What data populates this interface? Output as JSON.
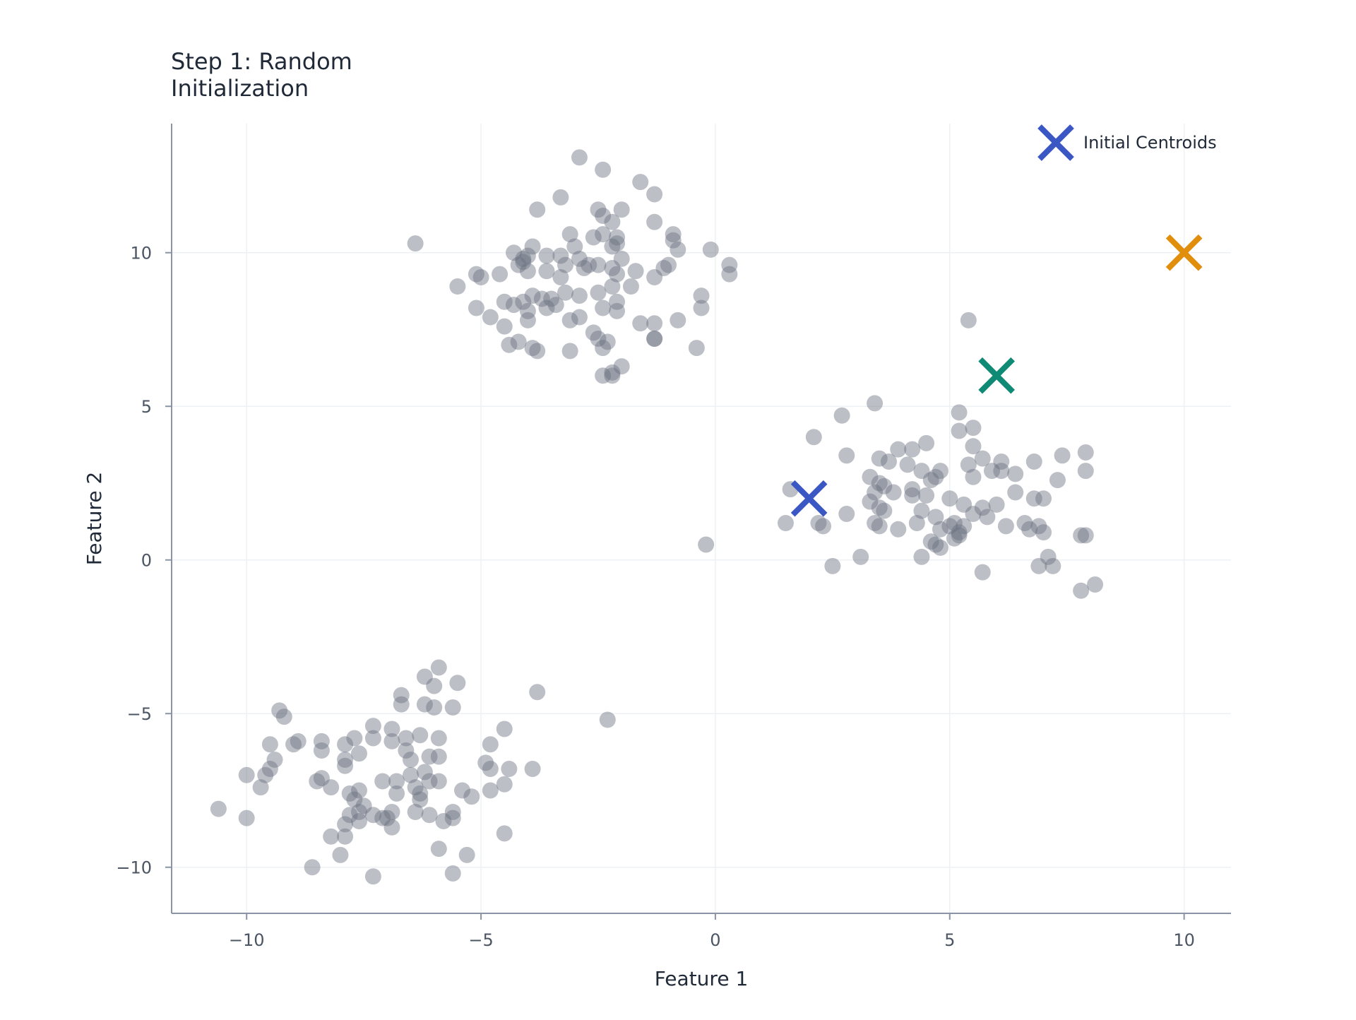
{
  "chart_data": {
    "type": "scatter",
    "title": "Step 1: Random\nInitialization",
    "xlabel": "Feature 1",
    "ylabel": "Feature 2",
    "xlim": [
      -11.6,
      11.0
    ],
    "ylim": [
      -11.5,
      14.2
    ],
    "xticks": [
      -10,
      -5,
      0,
      5,
      10
    ],
    "yticks": [
      -10,
      -5,
      0,
      5,
      10
    ],
    "xtick_labels": [
      "−10",
      "−5",
      "0",
      "5",
      "10"
    ],
    "ytick_labels": [
      "−10",
      "−5",
      "0",
      "5",
      "10"
    ],
    "grid": true,
    "legend": {
      "placement": "top-right",
      "entries": [
        "Initial Centroids"
      ]
    },
    "colors": {
      "points": "#6b7280",
      "axis": "#8a94a6",
      "grid": "#eef1f4",
      "text": "#1f2937",
      "tick_text": "#4b5563"
    },
    "series": [
      {
        "role": "data-points",
        "points": [
          [
            -2.9,
            13.1
          ],
          [
            -2.4,
            12.7
          ],
          [
            -1.6,
            12.3
          ],
          [
            -1.3,
            11.9
          ],
          [
            -3.3,
            11.8
          ],
          [
            -3.8,
            11.4
          ],
          [
            -2.5,
            11.4
          ],
          [
            -2.0,
            11.4
          ],
          [
            -2.2,
            11.0
          ],
          [
            -1.3,
            11.0
          ],
          [
            -2.4,
            11.2
          ],
          [
            -3.1,
            10.6
          ],
          [
            -2.6,
            10.5
          ],
          [
            -2.4,
            10.6
          ],
          [
            -2.1,
            10.5
          ],
          [
            -0.9,
            10.6
          ],
          [
            -0.9,
            10.4
          ],
          [
            -0.8,
            10.1
          ],
          [
            -0.1,
            10.1
          ],
          [
            -6.4,
            10.3
          ],
          [
            -3.9,
            10.2
          ],
          [
            -3.0,
            10.2
          ],
          [
            -2.2,
            10.2
          ],
          [
            -2.1,
            10.3
          ],
          [
            -4.3,
            10.0
          ],
          [
            -4.0,
            9.9
          ],
          [
            -3.6,
            9.9
          ],
          [
            -3.3,
            9.9
          ],
          [
            -2.9,
            9.8
          ],
          [
            -2.0,
            9.8
          ],
          [
            -2.5,
            9.6
          ],
          [
            -3.2,
            9.6
          ],
          [
            -4.1,
            9.7
          ],
          [
            -4.2,
            9.6
          ],
          [
            -4.1,
            9.8
          ],
          [
            -4.6,
            9.3
          ],
          [
            -5.0,
            9.2
          ],
          [
            -5.1,
            9.3
          ],
          [
            -5.5,
            8.9
          ],
          [
            -4.0,
            9.4
          ],
          [
            -3.6,
            9.4
          ],
          [
            -3.3,
            9.2
          ],
          [
            -2.8,
            9.5
          ],
          [
            -2.7,
            9.6
          ],
          [
            -2.2,
            9.5
          ],
          [
            -2.1,
            9.3
          ],
          [
            -1.7,
            9.4
          ],
          [
            -1.3,
            9.2
          ],
          [
            -1.1,
            9.5
          ],
          [
            -1.0,
            9.6
          ],
          [
            0.3,
            9.6
          ],
          [
            0.3,
            9.3
          ],
          [
            -1.8,
            8.9
          ],
          [
            -2.2,
            8.9
          ],
          [
            -2.5,
            8.7
          ],
          [
            -2.9,
            8.6
          ],
          [
            -3.2,
            8.7
          ],
          [
            -3.5,
            8.5
          ],
          [
            -3.7,
            8.5
          ],
          [
            -3.9,
            8.6
          ],
          [
            -4.1,
            8.4
          ],
          [
            -4.5,
            8.4
          ],
          [
            -4.3,
            8.3
          ],
          [
            -4.0,
            8.1
          ],
          [
            -3.6,
            8.2
          ],
          [
            -3.4,
            8.3
          ],
          [
            -2.4,
            8.2
          ],
          [
            -2.1,
            8.4
          ],
          [
            -2.1,
            8.1
          ],
          [
            -0.3,
            8.6
          ],
          [
            -0.3,
            8.2
          ],
          [
            -5.1,
            8.2
          ],
          [
            -4.8,
            7.9
          ],
          [
            -4.5,
            7.6
          ],
          [
            -4.0,
            7.8
          ],
          [
            -3.1,
            7.8
          ],
          [
            -2.9,
            7.9
          ],
          [
            -1.6,
            7.7
          ],
          [
            -1.3,
            7.7
          ],
          [
            -0.8,
            7.8
          ],
          [
            -2.6,
            7.4
          ],
          [
            -2.5,
            7.2
          ],
          [
            -2.3,
            7.1
          ],
          [
            -1.3,
            7.2
          ],
          [
            -1.3,
            7.2
          ],
          [
            -4.2,
            7.1
          ],
          [
            -4.4,
            7.0
          ],
          [
            -3.9,
            6.9
          ],
          [
            -3.8,
            6.8
          ],
          [
            -3.1,
            6.8
          ],
          [
            -2.4,
            6.9
          ],
          [
            -0.4,
            6.9
          ],
          [
            -2.0,
            6.3
          ],
          [
            -2.2,
            6.1
          ],
          [
            -2.4,
            6.0
          ],
          [
            -2.2,
            6.0
          ],
          [
            1.6,
            2.3
          ],
          [
            2.1,
            4.0
          ],
          [
            2.7,
            4.7
          ],
          [
            3.4,
            5.1
          ],
          [
            5.2,
            4.8
          ],
          [
            5.4,
            7.8
          ],
          [
            5.5,
            4.3
          ],
          [
            5.2,
            4.2
          ],
          [
            4.5,
            3.8
          ],
          [
            4.2,
            3.6
          ],
          [
            3.9,
            3.6
          ],
          [
            5.5,
            3.7
          ],
          [
            6.1,
            3.2
          ],
          [
            6.8,
            3.2
          ],
          [
            7.4,
            3.4
          ],
          [
            7.9,
            3.5
          ],
          [
            7.9,
            2.9
          ],
          [
            7.3,
            2.6
          ],
          [
            2.8,
            3.4
          ],
          [
            3.5,
            3.3
          ],
          [
            3.7,
            3.2
          ],
          [
            4.1,
            3.1
          ],
          [
            4.4,
            2.9
          ],
          [
            4.8,
            2.9
          ],
          [
            5.4,
            3.1
          ],
          [
            5.7,
            3.3
          ],
          [
            5.9,
            2.9
          ],
          [
            6.1,
            2.9
          ],
          [
            6.4,
            2.8
          ],
          [
            5.5,
            2.7
          ],
          [
            4.7,
            2.7
          ],
          [
            4.6,
            2.6
          ],
          [
            3.3,
            2.7
          ],
          [
            3.5,
            2.5
          ],
          [
            3.6,
            2.4
          ],
          [
            3.4,
            2.2
          ],
          [
            3.8,
            2.2
          ],
          [
            4.2,
            2.3
          ],
          [
            4.2,
            2.1
          ],
          [
            4.5,
            2.1
          ],
          [
            5.0,
            2.0
          ],
          [
            5.3,
            1.8
          ],
          [
            5.7,
            1.7
          ],
          [
            6.0,
            1.8
          ],
          [
            6.4,
            2.2
          ],
          [
            6.8,
            2.0
          ],
          [
            7.0,
            2.0
          ],
          [
            3.3,
            1.9
          ],
          [
            3.5,
            1.7
          ],
          [
            3.6,
            1.6
          ],
          [
            4.4,
            1.6
          ],
          [
            4.7,
            1.4
          ],
          [
            5.1,
            1.2
          ],
          [
            5.5,
            1.5
          ],
          [
            5.8,
            1.4
          ],
          [
            6.6,
            1.2
          ],
          [
            6.9,
            1.1
          ],
          [
            2.8,
            1.5
          ],
          [
            3.4,
            1.2
          ],
          [
            3.5,
            1.1
          ],
          [
            3.9,
            1.0
          ],
          [
            4.3,
            1.2
          ],
          [
            4.8,
            1.0
          ],
          [
            5.0,
            1.1
          ],
          [
            5.2,
            0.9
          ],
          [
            5.3,
            1.1
          ],
          [
            6.2,
            1.1
          ],
          [
            6.7,
            1.0
          ],
          [
            7.0,
            0.9
          ],
          [
            4.7,
            0.5
          ],
          [
            4.6,
            0.6
          ],
          [
            4.8,
            0.4
          ],
          [
            5.1,
            0.7
          ],
          [
            5.2,
            0.8
          ],
          [
            1.5,
            1.2
          ],
          [
            2.3,
            1.1
          ],
          [
            2.2,
            1.2
          ],
          [
            4.4,
            0.1
          ],
          [
            3.1,
            0.1
          ],
          [
            7.8,
            0.8
          ],
          [
            7.9,
            0.8
          ],
          [
            7.1,
            0.1
          ],
          [
            6.9,
            -0.2
          ],
          [
            7.2,
            -0.2
          ],
          [
            2.5,
            -0.2
          ],
          [
            5.7,
            -0.4
          ],
          [
            7.8,
            -1.0
          ],
          [
            8.1,
            -0.8
          ],
          [
            -0.2,
            0.5
          ],
          [
            -3.8,
            -4.3
          ],
          [
            -5.9,
            -3.5
          ],
          [
            -6.2,
            -3.8
          ],
          [
            -6.0,
            -4.1
          ],
          [
            -5.5,
            -4.0
          ],
          [
            -6.7,
            -4.4
          ],
          [
            -6.7,
            -4.7
          ],
          [
            -6.2,
            -4.7
          ],
          [
            -6.0,
            -4.8
          ],
          [
            -5.6,
            -4.8
          ],
          [
            -9.3,
            -4.9
          ],
          [
            -9.2,
            -5.1
          ],
          [
            -7.3,
            -5.4
          ],
          [
            -6.9,
            -5.5
          ],
          [
            -6.6,
            -5.8
          ],
          [
            -6.3,
            -5.7
          ],
          [
            -5.9,
            -5.8
          ],
          [
            -4.5,
            -5.5
          ],
          [
            -8.4,
            -5.9
          ],
          [
            -7.7,
            -5.8
          ],
          [
            -8.9,
            -5.9
          ],
          [
            -9.5,
            -6.0
          ],
          [
            -9.0,
            -6.0
          ],
          [
            -7.9,
            -6.0
          ],
          [
            -7.3,
            -5.8
          ],
          [
            -6.9,
            -5.9
          ],
          [
            -6.6,
            -6.2
          ],
          [
            -6.1,
            -6.4
          ],
          [
            -4.8,
            -6.0
          ],
          [
            -8.4,
            -6.2
          ],
          [
            -7.6,
            -6.3
          ],
          [
            -9.4,
            -6.5
          ],
          [
            -9.5,
            -6.8
          ],
          [
            -9.6,
            -7.0
          ],
          [
            -10.0,
            -7.0
          ],
          [
            -8.4,
            -7.1
          ],
          [
            -7.9,
            -6.7
          ],
          [
            -7.9,
            -6.5
          ],
          [
            -6.5,
            -6.5
          ],
          [
            -5.9,
            -6.4
          ],
          [
            -4.9,
            -6.6
          ],
          [
            -4.8,
            -6.8
          ],
          [
            -4.4,
            -6.8
          ],
          [
            -3.9,
            -6.8
          ],
          [
            -9.7,
            -7.4
          ],
          [
            -8.5,
            -7.2
          ],
          [
            -8.2,
            -7.4
          ],
          [
            -7.8,
            -7.6
          ],
          [
            -7.6,
            -7.5
          ],
          [
            -7.1,
            -7.2
          ],
          [
            -6.8,
            -7.2
          ],
          [
            -6.5,
            -7.0
          ],
          [
            -6.2,
            -6.9
          ],
          [
            -6.1,
            -7.2
          ],
          [
            -6.4,
            -7.4
          ],
          [
            -6.3,
            -7.6
          ],
          [
            -5.9,
            -7.2
          ],
          [
            -5.4,
            -7.5
          ],
          [
            -5.2,
            -7.7
          ],
          [
            -4.8,
            -7.5
          ],
          [
            -4.5,
            -7.3
          ],
          [
            -6.8,
            -7.6
          ],
          [
            -6.3,
            -7.8
          ],
          [
            -7.7,
            -7.8
          ],
          [
            -7.5,
            -8.0
          ],
          [
            -7.6,
            -8.2
          ],
          [
            -7.8,
            -8.3
          ],
          [
            -7.3,
            -8.3
          ],
          [
            -7.1,
            -8.4
          ],
          [
            -6.9,
            -8.2
          ],
          [
            -6.4,
            -8.2
          ],
          [
            -6.1,
            -8.3
          ],
          [
            -5.6,
            -8.2
          ],
          [
            -5.6,
            -8.4
          ],
          [
            -5.8,
            -8.5
          ],
          [
            -7.9,
            -8.6
          ],
          [
            -7.6,
            -8.5
          ],
          [
            -6.9,
            -8.7
          ],
          [
            -7.0,
            -8.4
          ],
          [
            -10.6,
            -8.1
          ],
          [
            -10.0,
            -8.4
          ],
          [
            -8.2,
            -9.0
          ],
          [
            -7.9,
            -9.0
          ],
          [
            -4.5,
            -8.9
          ],
          [
            -5.9,
            -9.4
          ],
          [
            -5.3,
            -9.6
          ],
          [
            -8.0,
            -9.6
          ],
          [
            -8.6,
            -10.0
          ],
          [
            -7.3,
            -10.3
          ],
          [
            -5.6,
            -10.2
          ],
          [
            -2.3,
            -5.2
          ]
        ]
      },
      {
        "role": "centroids",
        "name": "Initial Centroids",
        "points": [
          {
            "x": 2.0,
            "y": 2.0,
            "color": "#3a57c4"
          },
          {
            "x": 6.0,
            "y": 6.0,
            "color": "#0f8a74"
          },
          {
            "x": 10.0,
            "y": 10.0,
            "color": "#e08e0b"
          }
        ]
      }
    ]
  }
}
